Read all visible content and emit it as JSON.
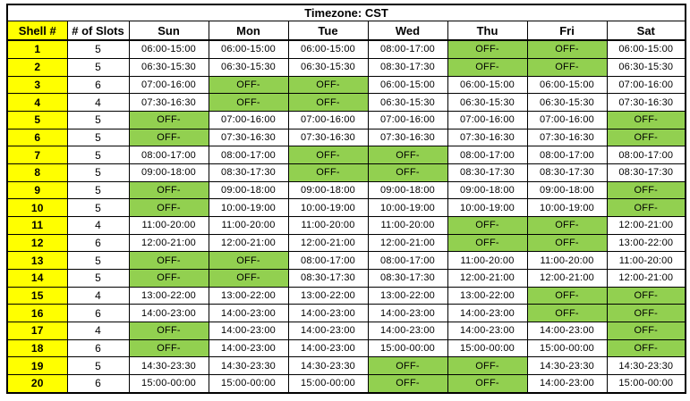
{
  "title": "Timezone: CST",
  "off_label": "OFF-",
  "colors": {
    "shell_bg": "#FFFF00",
    "off_bg": "#92D050",
    "grid": "#000000",
    "text": "#000000"
  },
  "columns": [
    "Shell #",
    "# of Slots",
    "Sun",
    "Mon",
    "Tue",
    "Wed",
    "Thu",
    "Fri",
    "Sat"
  ],
  "rows": [
    {
      "shell": "1",
      "slots": "5",
      "days": [
        "06:00-15:00",
        "06:00-15:00",
        "06:00-15:00",
        "08:00-17:00",
        "OFF-",
        "OFF-",
        "06:00-15:00"
      ]
    },
    {
      "shell": "2",
      "slots": "5",
      "days": [
        "06:30-15:30",
        "06:30-15:30",
        "06:30-15:30",
        "08:30-17:30",
        "OFF-",
        "OFF-",
        "06:30-15:30"
      ]
    },
    {
      "shell": "3",
      "slots": "6",
      "days": [
        "07:00-16:00",
        "OFF-",
        "OFF-",
        "06:00-15:00",
        "06:00-15:00",
        "06:00-15:00",
        "07:00-16:00"
      ]
    },
    {
      "shell": "4",
      "slots": "4",
      "days": [
        "07:30-16:30",
        "OFF-",
        "OFF-",
        "06:30-15:30",
        "06:30-15:30",
        "06:30-15:30",
        "07:30-16:30"
      ]
    },
    {
      "shell": "5",
      "slots": "5",
      "days": [
        "OFF-",
        "07:00-16:00",
        "07:00-16:00",
        "07:00-16:00",
        "07:00-16:00",
        "07:00-16:00",
        "OFF-"
      ]
    },
    {
      "shell": "6",
      "slots": "5",
      "days": [
        "OFF-",
        "07:30-16:30",
        "07:30-16:30",
        "07:30-16:30",
        "07:30-16:30",
        "07:30-16:30",
        "OFF-"
      ]
    },
    {
      "shell": "7",
      "slots": "5",
      "days": [
        "08:00-17:00",
        "08:00-17:00",
        "OFF-",
        "OFF-",
        "08:00-17:00",
        "08:00-17:00",
        "08:00-17:00"
      ]
    },
    {
      "shell": "8",
      "slots": "5",
      "days": [
        "09:00-18:00",
        "08:30-17:30",
        "OFF-",
        "OFF-",
        "08:30-17:30",
        "08:30-17:30",
        "08:30-17:30"
      ]
    },
    {
      "shell": "9",
      "slots": "5",
      "days": [
        "OFF-",
        "09:00-18:00",
        "09:00-18:00",
        "09:00-18:00",
        "09:00-18:00",
        "09:00-18:00",
        "OFF-"
      ]
    },
    {
      "shell": "10",
      "slots": "5",
      "days": [
        "OFF-",
        "10:00-19:00",
        "10:00-19:00",
        "10:00-19:00",
        "10:00-19:00",
        "10:00-19:00",
        "OFF-"
      ]
    },
    {
      "shell": "11",
      "slots": "4",
      "days": [
        "11:00-20:00",
        "11:00-20:00",
        "11:00-20:00",
        "11:00-20:00",
        "OFF-",
        "OFF-",
        "12:00-21:00"
      ]
    },
    {
      "shell": "12",
      "slots": "6",
      "days": [
        "12:00-21:00",
        "12:00-21:00",
        "12:00-21:00",
        "12:00-21:00",
        "OFF-",
        "OFF-",
        "13:00-22:00"
      ]
    },
    {
      "shell": "13",
      "slots": "5",
      "days": [
        "OFF-",
        "OFF-",
        "08:00-17:00",
        "08:00-17:00",
        "11:00-20:00",
        "11:00-20:00",
        "11:00-20:00"
      ]
    },
    {
      "shell": "14",
      "slots": "5",
      "days": [
        "OFF-",
        "OFF-",
        "08:30-17:30",
        "08:30-17:30",
        "12:00-21:00",
        "12:00-21:00",
        "12:00-21:00"
      ]
    },
    {
      "shell": "15",
      "slots": "4",
      "days": [
        "13:00-22:00",
        "13:00-22:00",
        "13:00-22:00",
        "13:00-22:00",
        "13:00-22:00",
        "OFF-",
        "OFF-"
      ]
    },
    {
      "shell": "16",
      "slots": "6",
      "days": [
        "14:00-23:00",
        "14:00-23:00",
        "14:00-23:00",
        "14:00-23:00",
        "14:00-23:00",
        "OFF-",
        "OFF-"
      ]
    },
    {
      "shell": "17",
      "slots": "4",
      "days": [
        "OFF-",
        "14:00-23:00",
        "14:00-23:00",
        "14:00-23:00",
        "14:00-23:00",
        "14:00-23:00",
        "OFF-"
      ]
    },
    {
      "shell": "18",
      "slots": "6",
      "days": [
        "OFF-",
        "14:00-23:00",
        "14:00-23:00",
        "15:00-00:00",
        "15:00-00:00",
        "15:00-00:00",
        "OFF-"
      ]
    },
    {
      "shell": "19",
      "slots": "5",
      "days": [
        "14:30-23:30",
        "14:30-23:30",
        "14:30-23:30",
        "OFF-",
        "OFF-",
        "14:30-23:30",
        "14:30-23:30"
      ]
    },
    {
      "shell": "20",
      "slots": "6",
      "days": [
        "15:00-00:00",
        "15:00-00:00",
        "15:00-00:00",
        "OFF-",
        "OFF-",
        "14:00-23:00",
        "15:00-00:00"
      ]
    }
  ]
}
